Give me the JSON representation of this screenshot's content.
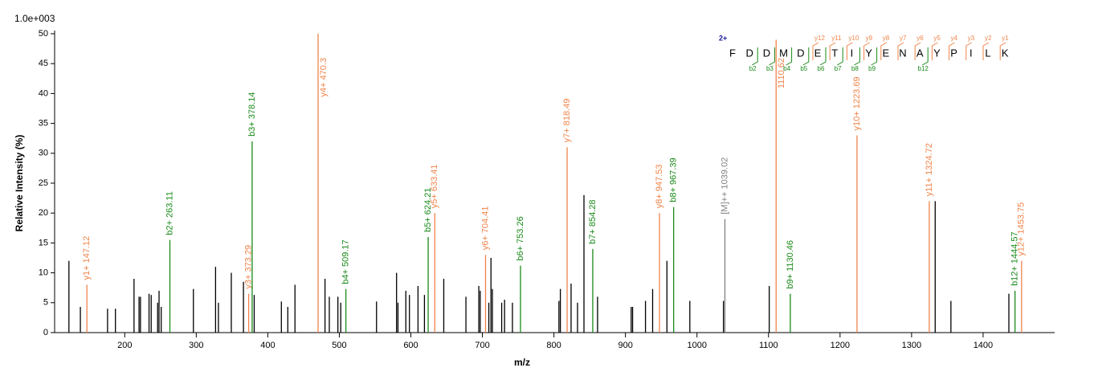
{
  "chart_data": {
    "type": "spectrum",
    "scale_label": "1.0e+003",
    "y_label": "Relative  Intensity (%)",
    "x_label": "m/z",
    "xlim": [
      102,
      1500
    ],
    "ylim": [
      0,
      50
    ],
    "xticks": [
      200,
      300,
      400,
      500,
      600,
      700,
      800,
      900,
      1000,
      1100,
      1200,
      1300,
      1400
    ],
    "yticks": [
      0,
      5,
      10,
      15,
      20,
      25,
      30,
      35,
      40,
      45,
      50
    ],
    "peak_color": "#000000",
    "peaks": {
      "x": [
        122,
        138,
        176,
        187,
        213,
        220,
        222,
        234,
        237,
        246,
        248,
        251,
        296,
        327,
        331,
        349,
        366,
        381,
        419,
        428,
        438,
        480,
        486,
        498,
        502,
        552,
        580,
        582,
        593,
        598,
        610,
        619,
        646,
        677,
        695,
        697,
        709,
        712,
        714,
        727,
        731,
        742,
        807,
        809,
        824,
        833,
        842,
        861,
        908,
        910,
        928,
        938,
        958,
        990,
        1037,
        1101,
        1333,
        1355,
        1436
      ],
      "values": [
        12,
        4.3,
        4,
        4,
        9,
        6,
        6,
        6.5,
        6.3,
        5,
        7,
        4.3,
        7.3,
        11,
        5,
        10,
        8.5,
        6.3,
        5.2,
        4.3,
        8,
        9,
        6,
        6,
        5,
        5.2,
        10,
        5,
        7,
        6.3,
        7.8,
        6.3,
        9,
        6,
        7.8,
        7,
        5,
        12.5,
        7.3,
        5,
        5.5,
        5,
        5.3,
        7.3,
        8.2,
        5,
        23,
        6,
        4.3,
        4.3,
        5.3,
        7.3,
        12,
        5.3,
        5.3,
        7.8,
        22,
        5.3,
        6.5
      ]
    },
    "annotated": {
      "x": [
        147.12,
        263.11,
        373.29,
        378.14,
        470.3,
        509.17,
        624.21,
        633.41,
        704.41,
        753.26,
        818.49,
        854.28,
        947.53,
        967.39,
        1039.02,
        1110.62,
        1130.46,
        1223.69,
        1324.72,
        1444.57,
        1453.75
      ],
      "values": [
        8,
        15.5,
        6.5,
        32,
        50,
        7.3,
        16,
        20,
        13,
        11.2,
        31,
        14,
        20,
        21,
        19,
        49,
        6.5,
        33,
        22,
        7,
        12
      ],
      "labels": [
        "y1+ 147.12",
        "b2+ 263.11",
        "y3+ 373.29",
        "b3+ 378.14",
        "y4+ 470.3",
        "b4+ 509.17",
        "b5+ 624.21",
        "y5+ 633.41",
        "y6+ 704.41",
        "b6+ 753.26",
        "y7+ 818.49",
        "b7+ 854.28",
        "y8+ 947.53",
        "b8+ 967.39",
        "[M]++ 1039.02",
        "1110.62",
        "b9+ 1130.46",
        "y10+ 1223.69",
        "y11+ 1324.72",
        "b12+ 1444.57",
        "y12+ 1453.75"
      ],
      "colors": [
        "#f0844a",
        "#1a8a1a",
        "#f0844a",
        "#1a8a1a",
        "#f0844a",
        "#1a8a1a",
        "#1a8a1a",
        "#f0844a",
        "#f0844a",
        "#1a8a1a",
        "#f0844a",
        "#1a8a1a",
        "#f0844a",
        "#1a8a1a",
        "#808080",
        "#f0844a",
        "#1a8a1a",
        "#f0844a",
        "#f0844a",
        "#1a8a1a",
        "#f0844a"
      ]
    },
    "sequence": {
      "charge": "2+",
      "residues": [
        "F",
        "D",
        "D",
        "M",
        "D",
        "E",
        "T",
        "I",
        "Y",
        "E",
        "N",
        "A",
        "Y",
        "P",
        "I",
        "L",
        "K"
      ],
      "y_ions": [
        "y12",
        "y11",
        "y10",
        "y9",
        "y8",
        "y7",
        "y6",
        "y5",
        "y4",
        "y3",
        "y2",
        "y1"
      ],
      "b_ions": [
        "b2",
        "b3",
        "b4",
        "b5",
        "b6",
        "b7",
        "b8",
        "b9",
        "b12"
      ],
      "y_color": "#f0844a",
      "b_color": "#1a8a1a",
      "charge_color": "#1a1a9a"
    }
  }
}
